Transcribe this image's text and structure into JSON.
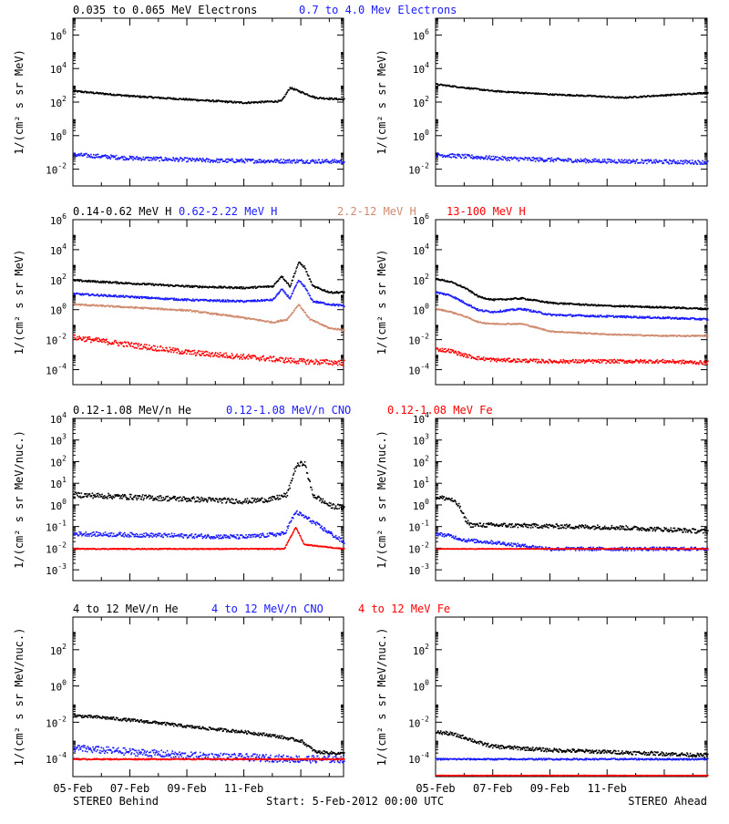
{
  "footer": {
    "left": "STEREO Behind",
    "center": "Start:  5-Feb-2012 00:00 UTC",
    "right": "STEREO Ahead"
  },
  "colors": {
    "black": "#000000",
    "blue": "#1a1aff",
    "tan": "#d08a6e",
    "red": "#ff0000"
  },
  "x_ticks": [
    "05-Feb",
    "07-Feb",
    "09-Feb",
    "11-Feb"
  ],
  "chart_data": [
    {
      "type": "scatter",
      "row": 0,
      "legend": [
        {
          "text": "0.035 to 0.065 MeV Electrons",
          "color": "black"
        },
        {
          "text": "0.7 to 4.0 Mev Electrons",
          "color": "blue"
        }
      ],
      "ylabel": "1/(cm² s sr MeV)",
      "ylim_log10": [
        -3,
        7
      ],
      "yticks": [
        {
          "base": "10",
          "exp": "-2",
          "v": -2
        },
        {
          "base": "10",
          "exp": "0",
          "v": 0
        },
        {
          "base": "10",
          "exp": "2",
          "v": 2
        },
        {
          "base": "10",
          "exp": "4",
          "v": 4
        },
        {
          "base": "10",
          "exp": "6",
          "v": 6
        }
      ],
      "xlim_days": [
        0,
        9.5
      ],
      "panels": [
        {
          "name": "STEREO Behind",
          "series": [
            {
              "name": "0.035 to 0.065 MeV Electrons",
              "color": "black",
              "x": [
                0,
                2,
                4,
                6,
                7.3,
                7.6,
                7.9,
                8.5,
                9.5
              ],
              "log10y": [
                2.7,
                2.4,
                2.2,
                2.0,
                2.1,
                2.9,
                2.7,
                2.3,
                2.2
              ],
              "scatter": 0.05
            },
            {
              "name": "0.7 to 4.0 Mev Electrons",
              "color": "blue",
              "x": [
                0,
                2,
                5,
                9.5
              ],
              "log10y": [
                -1.1,
                -1.3,
                -1.45,
                -1.5
              ],
              "scatter": 0.12
            }
          ]
        },
        {
          "name": "STEREO Ahead",
          "series": [
            {
              "name": "0.035 to 0.065 MeV Electrons",
              "color": "black",
              "x": [
                0,
                1,
                2,
                4,
                5.5,
                6.5,
                7.5,
                8.5,
                9.5
              ],
              "log10y": [
                3.1,
                2.9,
                2.7,
                2.5,
                2.4,
                2.3,
                2.4,
                2.5,
                2.6
              ],
              "scatter": 0.04
            },
            {
              "name": "0.7 to 4.0 Mev Electrons",
              "color": "blue",
              "x": [
                0,
                2,
                5,
                9.5
              ],
              "log10y": [
                -1.1,
                -1.3,
                -1.45,
                -1.55
              ],
              "scatter": 0.12
            }
          ]
        }
      ]
    },
    {
      "type": "scatter",
      "row": 1,
      "legend": [
        {
          "text": "0.14-0.62 MeV H",
          "color": "black"
        },
        {
          "text": "0.62-2.22 MeV H",
          "color": "blue"
        },
        {
          "text": "2.2-12 MeV H",
          "color": "tan"
        },
        {
          "text": "13-100 MeV H",
          "color": "red"
        }
      ],
      "ylabel": "1/(cm² s sr MeV)",
      "ylim_log10": [
        -5,
        6
      ],
      "yticks": [
        {
          "base": "10",
          "exp": "-4",
          "v": -4
        },
        {
          "base": "10",
          "exp": "-2",
          "v": -2
        },
        {
          "base": "10",
          "exp": "0",
          "v": 0
        },
        {
          "base": "10",
          "exp": "2",
          "v": 2
        },
        {
          "base": "10",
          "exp": "4",
          "v": 4
        },
        {
          "base": "10",
          "exp": "6",
          "v": 6
        }
      ],
      "xlim_days": [
        0,
        9.5
      ],
      "panels": [
        {
          "name": "STEREO Behind",
          "series": [
            {
              "name": "0.14-0.62 MeV H",
              "color": "black",
              "x": [
                0,
                2,
                4,
                6,
                7,
                7.3,
                7.6,
                7.9,
                8.1,
                8.4,
                9,
                9.5
              ],
              "log10y": [
                2.0,
                1.8,
                1.6,
                1.5,
                1.6,
                2.3,
                1.6,
                3.2,
                2.9,
                1.6,
                1.2,
                1.2
              ],
              "scatter": 0.06
            },
            {
              "name": "0.62-2.22 MeV H",
              "color": "blue",
              "x": [
                0,
                2,
                4,
                6,
                7,
                7.3,
                7.6,
                7.9,
                8.1,
                8.4,
                9,
                9.5
              ],
              "log10y": [
                1.1,
                0.9,
                0.7,
                0.6,
                0.7,
                1.4,
                0.8,
                2.0,
                1.6,
                0.6,
                0.4,
                0.3
              ],
              "scatter": 0.06
            },
            {
              "name": "2.2-12 MeV H",
              "color": "tan",
              "x": [
                0,
                2,
                4,
                6,
                7,
                7.5,
                7.9,
                8.3,
                9,
                9.5
              ],
              "log10y": [
                0.4,
                0.2,
                0.0,
                -0.5,
                -0.8,
                -0.6,
                0.4,
                -0.6,
                -1.2,
                -1.3
              ],
              "scatter": 0.05
            },
            {
              "name": "13-100 MeV H",
              "color": "red",
              "x": [
                0,
                2,
                4,
                6,
                8,
                9.5
              ],
              "log10y": [
                -1.8,
                -2.3,
                -2.8,
                -3.1,
                -3.4,
                -3.5
              ],
              "scatter": 0.18
            }
          ]
        },
        {
          "name": "STEREO Ahead",
          "series": [
            {
              "name": "0.14-0.62 MeV H",
              "color": "black",
              "x": [
                0,
                0.5,
                1,
                1.5,
                2,
                3,
                4,
                6,
                8,
                9.5
              ],
              "log10y": [
                2.1,
                1.9,
                1.5,
                0.9,
                0.7,
                0.8,
                0.5,
                0.3,
                0.2,
                0.1
              ],
              "scatter": 0.05
            },
            {
              "name": "0.62-2.22 MeV H",
              "color": "blue",
              "x": [
                0,
                0.5,
                1,
                1.5,
                2,
                3,
                4,
                6,
                8,
                9.5
              ],
              "log10y": [
                1.2,
                1.0,
                0.5,
                0.0,
                -0.1,
                0.1,
                -0.3,
                -0.4,
                -0.5,
                -0.6
              ],
              "scatter": 0.06
            },
            {
              "name": "2.2-12 MeV H",
              "color": "tan",
              "x": [
                0,
                0.5,
                1,
                1.5,
                2,
                3,
                4,
                6,
                8,
                9.5
              ],
              "log10y": [
                0.1,
                -0.1,
                -0.4,
                -0.8,
                -0.9,
                -0.9,
                -1.4,
                -1.6,
                -1.7,
                -1.7
              ],
              "scatter": 0.04
            },
            {
              "name": "13-100 MeV H",
              "color": "red",
              "x": [
                0,
                0.5,
                1,
                1.5,
                2,
                4,
                6,
                8,
                9.5
              ],
              "log10y": [
                -2.6,
                -2.7,
                -3.0,
                -3.2,
                -3.3,
                -3.4,
                -3.4,
                -3.4,
                -3.5
              ],
              "scatter": 0.12
            }
          ]
        }
      ]
    },
    {
      "type": "scatter",
      "row": 2,
      "legend": [
        {
          "text": "0.12-1.08 MeV/n He",
          "color": "black"
        },
        {
          "text": "0.12-1.08 MeV/n CNO",
          "color": "blue"
        },
        {
          "text": "0.12-1.08 MeV Fe",
          "color": "red"
        }
      ],
      "ylabel": "1/(cm² s sr MeV/nuc.)",
      "ylim_log10": [
        -3.5,
        4
      ],
      "yticks": [
        {
          "base": "10",
          "exp": "-3",
          "v": -3
        },
        {
          "base": "10",
          "exp": "-2",
          "v": -2
        },
        {
          "base": "10",
          "exp": "-1",
          "v": -1
        },
        {
          "base": "10",
          "exp": "0",
          "v": 0
        },
        {
          "base": "10",
          "exp": "1",
          "v": 1
        },
        {
          "base": "10",
          "exp": "2",
          "v": 2
        },
        {
          "base": "10",
          "exp": "3",
          "v": 3
        },
        {
          "base": "10",
          "exp": "4",
          "v": 4
        }
      ],
      "xlim_days": [
        0,
        9.5
      ],
      "panels": [
        {
          "name": "STEREO Behind",
          "series": [
            {
              "name": "0.12-1.08 MeV/n He",
              "color": "black",
              "x": [
                0,
                1,
                2,
                4,
                6,
                7,
                7.5,
                7.8,
                8.1,
                8.4,
                9,
                9.5
              ],
              "log10y": [
                0.5,
                0.45,
                0.4,
                0.3,
                0.2,
                0.3,
                0.5,
                1.8,
                2.0,
                0.5,
                0,
                -0.1
              ],
              "scatter": 0.12
            },
            {
              "name": "0.12-1.08 MeV/n CNO",
              "color": "blue",
              "x": [
                0,
                2,
                4,
                6,
                7.4,
                7.8,
                8.1,
                9.5
              ],
              "log10y": [
                -1.3,
                -1.35,
                -1.4,
                -1.45,
                -1.3,
                -0.3,
                -0.5,
                -1.7
              ],
              "scatter": 0.1
            },
            {
              "name": "0.12-1.08 MeV Fe",
              "color": "red",
              "x": [
                0,
                3,
                7.4,
                7.8,
                8.1,
                9.5
              ],
              "log10y": [
                -2.0,
                -2.0,
                -2.0,
                -1.0,
                -1.8,
                -2.0
              ],
              "scatter": 0.02
            }
          ]
        },
        {
          "name": "STEREO Ahead",
          "series": [
            {
              "name": "0.12-1.08 MeV/n He",
              "color": "black",
              "x": [
                0,
                0.5,
                0.8,
                1.0,
                1.2,
                2,
                4,
                6,
                8,
                9.5
              ],
              "log10y": [
                0.4,
                0.3,
                0.0,
                -0.6,
                -0.9,
                -0.9,
                -0.95,
                -1.0,
                -1.1,
                -1.2
              ],
              "scatter": 0.1
            },
            {
              "name": "0.12-1.08 MeV/n CNO",
              "color": "blue",
              "x": [
                0,
                0.5,
                1,
                2,
                4,
                9.5
              ],
              "log10y": [
                -1.3,
                -1.4,
                -1.6,
                -1.7,
                -2.0,
                -2.0
              ],
              "scatter": 0.08
            },
            {
              "name": "0.12-1.08 MeV Fe",
              "color": "red",
              "x": [
                0,
                9.5
              ],
              "log10y": [
                -2.0,
                -2.0
              ],
              "scatter": 0.01
            }
          ]
        }
      ]
    },
    {
      "type": "scatter",
      "row": 3,
      "legend": [
        {
          "text": "4 to 12 MeV/n He",
          "color": "black"
        },
        {
          "text": "4 to 12 MeV/n CNO",
          "color": "blue"
        },
        {
          "text": "4 to 12 MeV Fe",
          "color": "red"
        }
      ],
      "ylabel": "1/(cm² s sr MeV/nuc.)",
      "ylim_log10": [
        -5,
        3.8
      ],
      "yticks": [
        {
          "base": "10",
          "exp": "-4",
          "v": -4
        },
        {
          "base": "10",
          "exp": "-2",
          "v": -2
        },
        {
          "base": "10",
          "exp": "0",
          "v": 0
        },
        {
          "base": "10",
          "exp": "2",
          "v": 2
        }
      ],
      "xlim_days": [
        0,
        9.5
      ],
      "panels": [
        {
          "name": "STEREO Behind",
          "series": [
            {
              "name": "4 to 12 MeV/n He",
              "color": "black",
              "x": [
                0,
                1,
                2,
                3,
                4,
                5,
                6,
                7,
                8,
                8.5,
                9.5
              ],
              "log10y": [
                -1.6,
                -1.7,
                -1.85,
                -2.0,
                -2.2,
                -2.35,
                -2.5,
                -2.7,
                -3.0,
                -3.6,
                -3.7
              ],
              "scatter": 0.08
            },
            {
              "name": "4 to 12 MeV/n CNO",
              "color": "blue",
              "x": [
                0,
                2,
                4,
                6,
                8,
                9.5
              ],
              "log10y": [
                -3.4,
                -3.6,
                -3.8,
                -3.9,
                -4.0,
                -4.0
              ],
              "scatter": 0.2
            },
            {
              "name": "4 to 12 MeV Fe",
              "color": "red",
              "x": [
                0,
                9.5
              ],
              "log10y": [
                -4.0,
                -4.0
              ],
              "scatter": 0.03
            }
          ]
        },
        {
          "name": "STEREO Ahead",
          "series": [
            {
              "name": "4 to 12 MeV/n He",
              "color": "black",
              "x": [
                0,
                0.5,
                1,
                1.5,
                2,
                3,
                4,
                6,
                8,
                9.5
              ],
              "log10y": [
                -2.5,
                -2.6,
                -2.8,
                -3.1,
                -3.3,
                -3.4,
                -3.5,
                -3.6,
                -3.7,
                -3.8
              ],
              "scatter": 0.1
            },
            {
              "name": "4 to 12 MeV/n CNO",
              "color": "blue",
              "x": [
                0,
                2,
                9.5
              ],
              "log10y": [
                -4.0,
                -4.0,
                -4.0
              ],
              "scatter": 0.04
            },
            {
              "name": "4 to 12 MeV Fe",
              "color": "red",
              "x": [
                0,
                9.5
              ],
              "log10y": [
                -4.9,
                -4.9
              ],
              "scatter": 0.01
            }
          ]
        }
      ]
    }
  ]
}
